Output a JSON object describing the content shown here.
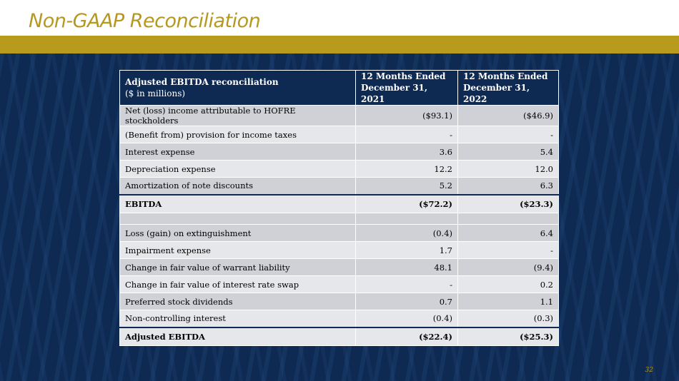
{
  "title": "Non-GAAP Reconciliation",
  "table": {
    "header": {
      "label": "Adjusted EBITDA reconciliation",
      "sub": "($ in millions)",
      "col1": [
        "12 Months Ended",
        "December 31, 2021"
      ],
      "col2": [
        "12 Months Ended",
        "December 31, 2022"
      ]
    },
    "rows": [
      {
        "label": "Net (loss) income attributable to HOFRE stockholders",
        "v2021": "($93.1)",
        "v2022": "($46.9)"
      },
      {
        "label": "(Benefit from) provision for income taxes",
        "v2021": "-",
        "v2022": "-"
      },
      {
        "label": "Interest expense",
        "v2021": "3.6",
        "v2022": "5.4"
      },
      {
        "label": "Depreciation expense",
        "v2021": "12.2",
        "v2022": "12.0"
      },
      {
        "label": "Amortization of note discounts",
        "v2021": "5.2",
        "v2022": "6.3"
      },
      {
        "label": "EBITDA",
        "v2021": "($72.2)",
        "v2022": "($23.3)"
      },
      {
        "label": "Loss (gain) on extinguishment",
        "v2021": "(0.4)",
        "v2022": "6.4"
      },
      {
        "label": "Impairment expense",
        "v2021": "1.7",
        "v2022": "-"
      },
      {
        "label": "Change in fair value of warrant liability",
        "v2021": "48.1",
        "v2022": "(9.4)"
      },
      {
        "label": "Change in fair value of interest rate swap",
        "v2021": "-",
        "v2022": "0.2"
      },
      {
        "label": "Preferred stock dividends",
        "v2021": "0.7",
        "v2022": "1.1"
      },
      {
        "label": "Non-controlling interest",
        "v2021": "(0.4)",
        "v2022": "(0.3)"
      },
      {
        "label": "Adjusted EBITDA",
        "v2021": "($22.4)",
        "v2022": "($25.3)"
      }
    ]
  },
  "page_number": "32",
  "colors": {
    "navy": "#0e2a52",
    "gold": "#b89b1c"
  }
}
